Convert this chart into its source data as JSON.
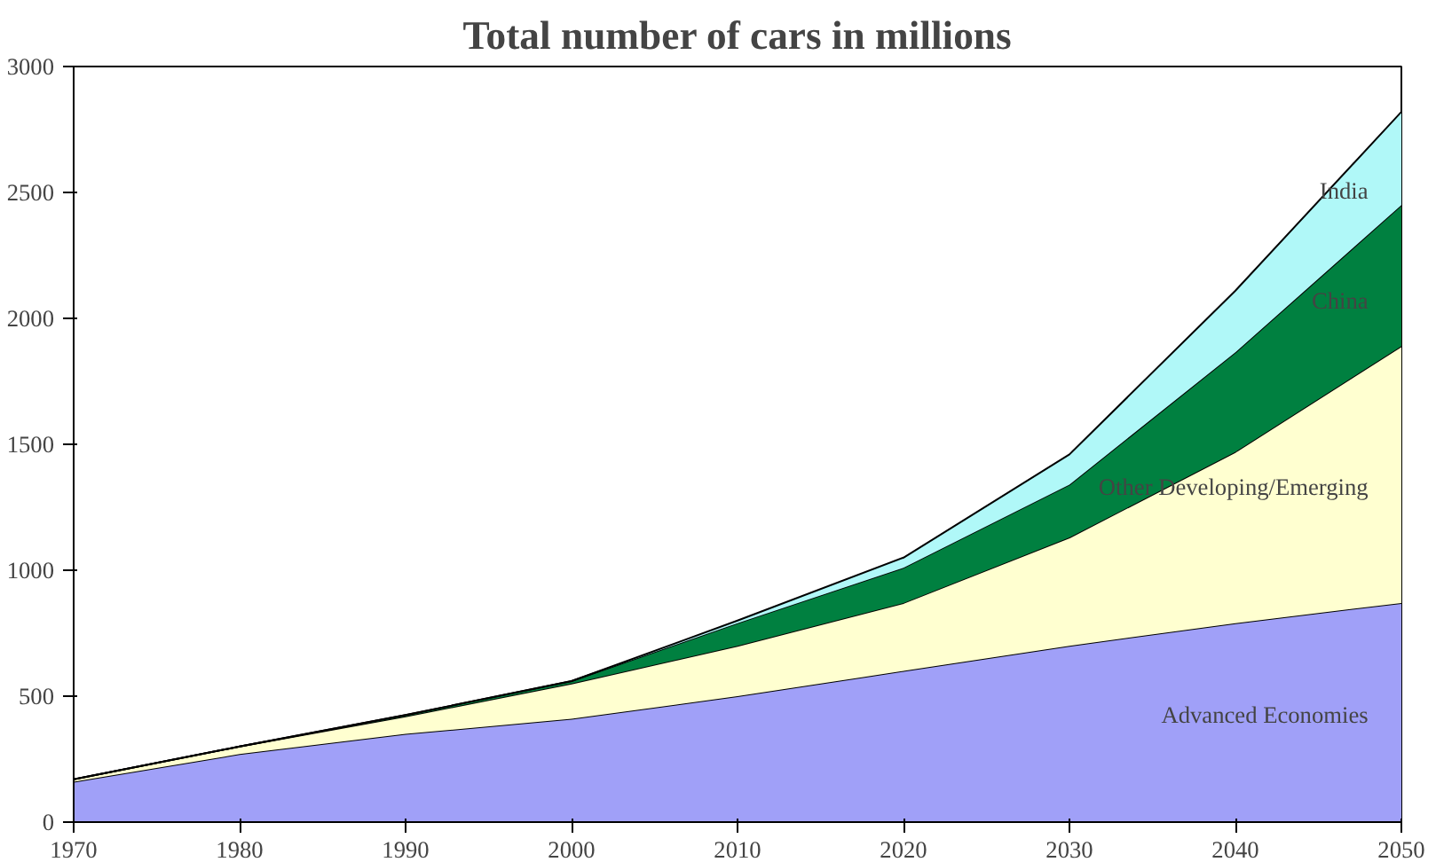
{
  "chart_data": {
    "type": "area",
    "stacked": true,
    "title": "Total number of cars in millions",
    "x": [
      1970,
      1980,
      1990,
      2000,
      2010,
      2020,
      2030,
      2040,
      2050
    ],
    "series": [
      {
        "name": "Advanced Economies",
        "color": "#a0a0f8",
        "values": [
          160,
          270,
          350,
          410,
          500,
          600,
          700,
          790,
          870
        ]
      },
      {
        "name": "Other Developing/Emerging",
        "color": "#ffffd0",
        "values": [
          10,
          30,
          70,
          140,
          200,
          270,
          430,
          680,
          1020
        ]
      },
      {
        "name": "China",
        "color": "#008040",
        "values": [
          0,
          0,
          5,
          10,
          90,
          140,
          210,
          395,
          560
        ]
      },
      {
        "name": "India",
        "color": "#b0f8f8",
        "values": [
          0,
          0,
          0,
          0,
          10,
          40,
          120,
          245,
          370
        ]
      }
    ],
    "xlim": [
      1970,
      2050
    ],
    "xticks": [
      1970,
      1980,
      1990,
      2000,
      2010,
      2020,
      2030,
      2040,
      2050
    ],
    "ylim": [
      0,
      3000
    ],
    "yticks": [
      0,
      500,
      1000,
      1500,
      2000,
      2500,
      3000
    ],
    "grid": false
  }
}
